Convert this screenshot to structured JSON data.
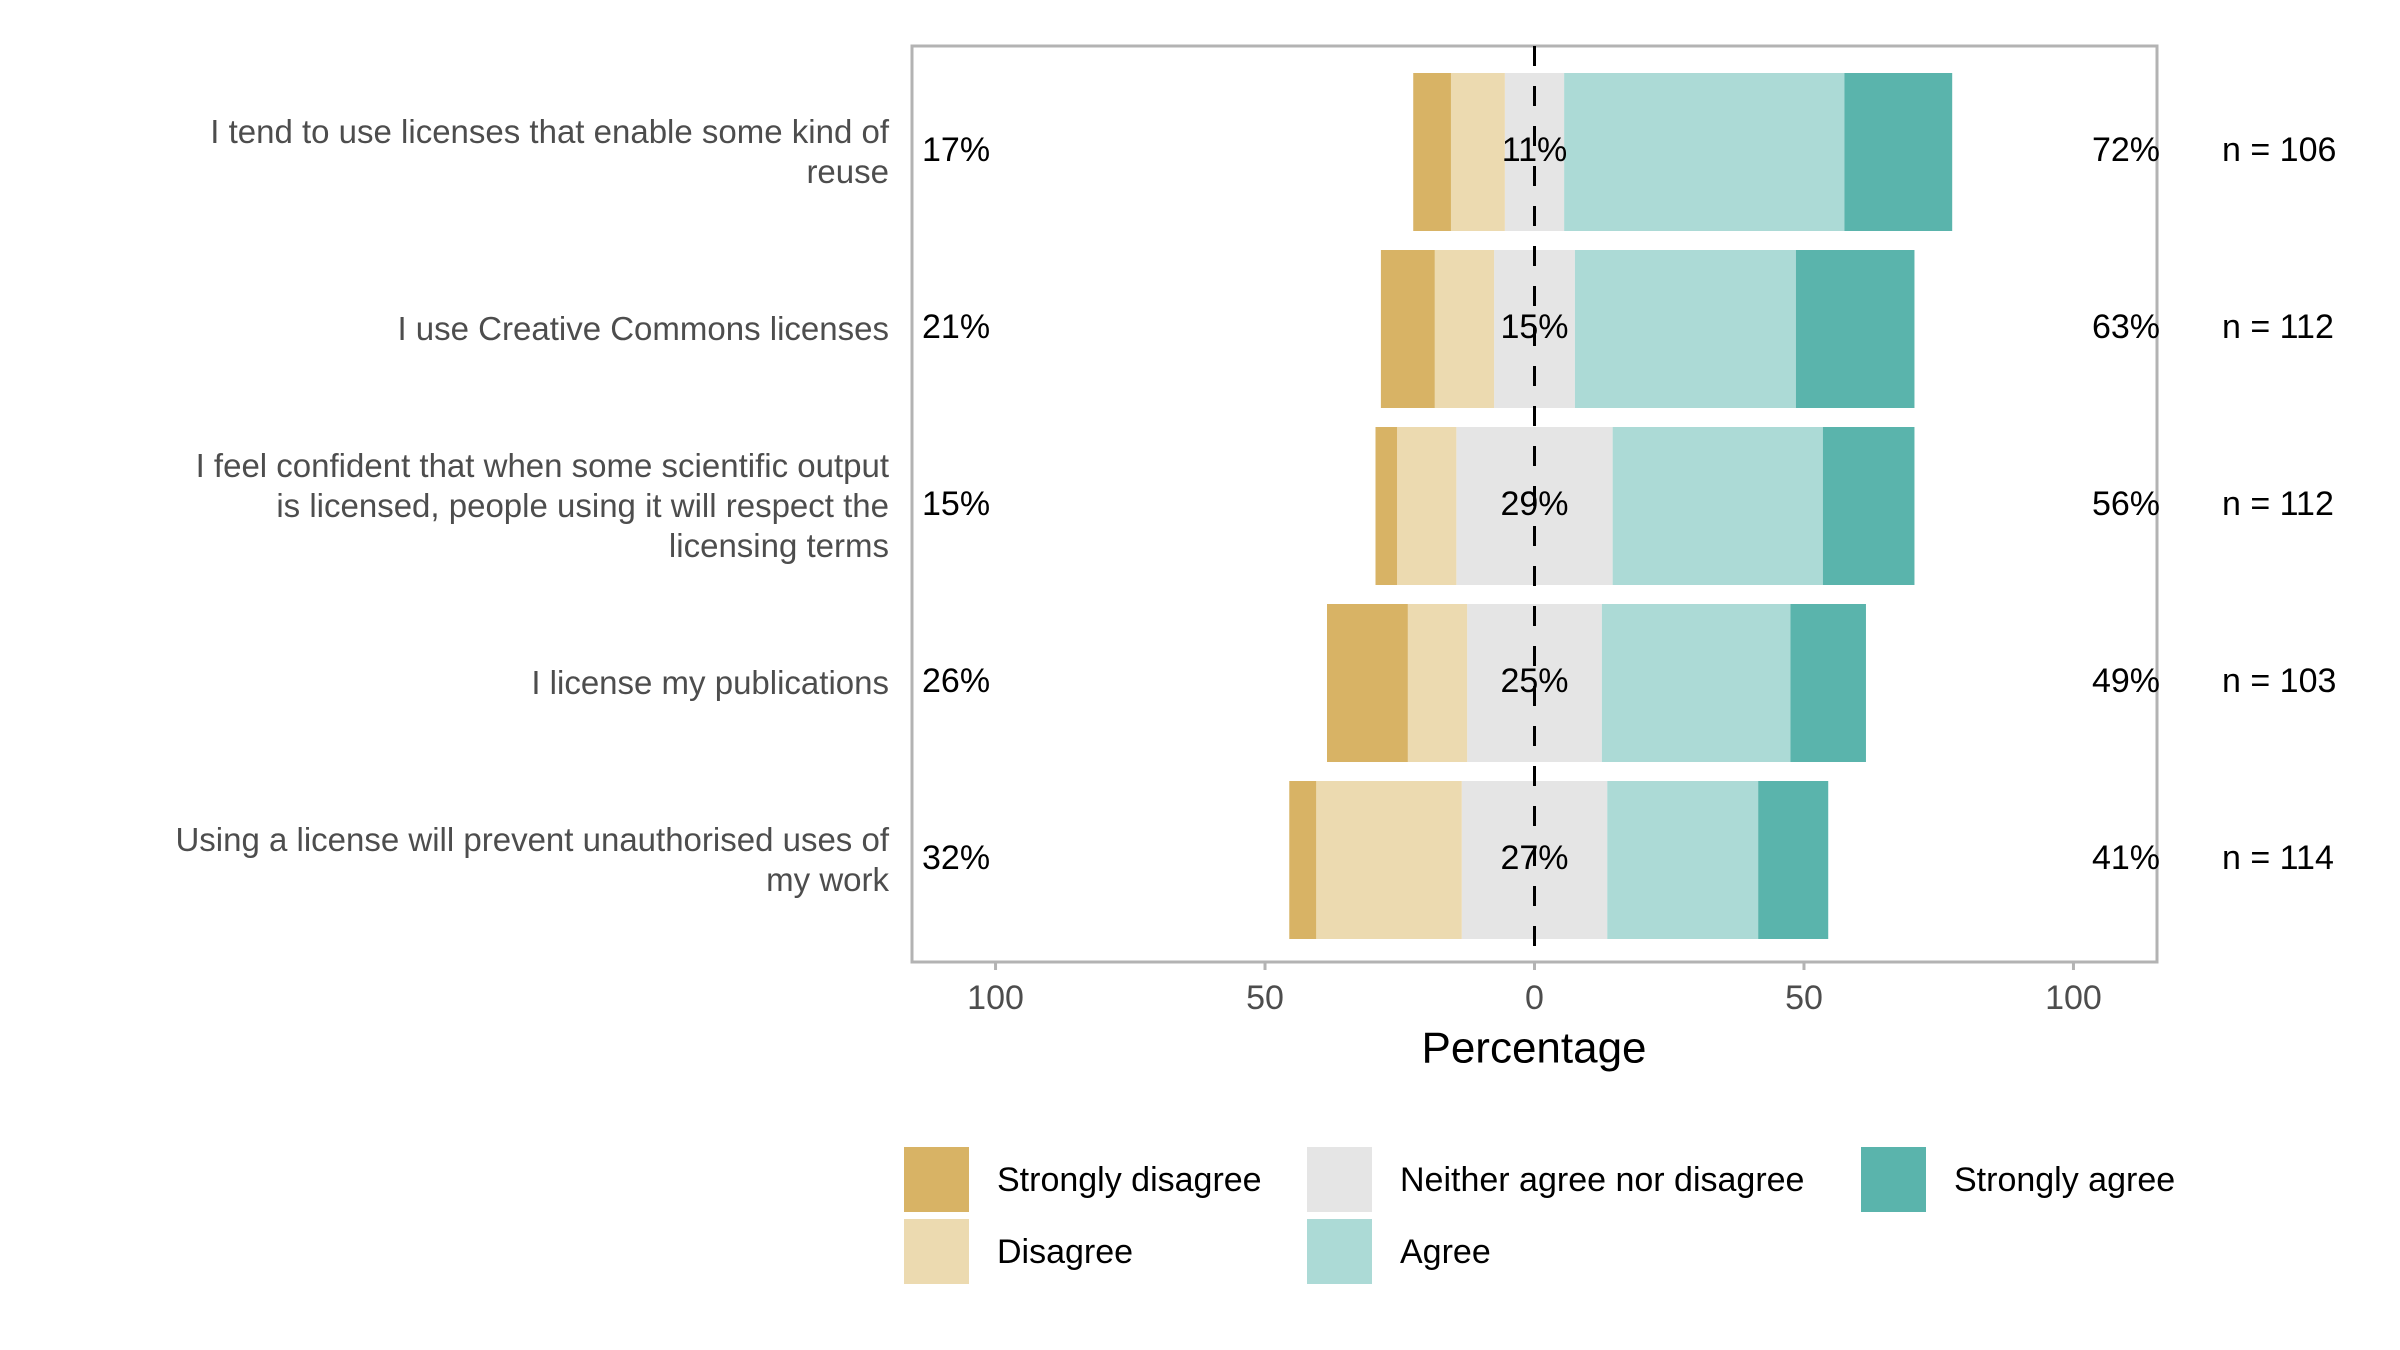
{
  "chart_data": {
    "type": "diverging_bar",
    "x_label": "Percentage",
    "categories": [
      "I tend to use licenses that enable some kind of\nreuse",
      "I use Creative Commons licenses",
      "I feel confident that when some scientific output\nis licensed, people using it will respect the\nlicensing terms",
      "I license my publications",
      "Using a license will prevent unauthorised uses of\nmy work"
    ],
    "series": [
      {
        "name": "Strongly disagree",
        "color": "#d8b365",
        "side": "negative",
        "values": [
          7,
          10,
          4,
          15,
          5
        ]
      },
      {
        "name": "Disagree",
        "color": "#ecdab0",
        "side": "negative",
        "values": [
          10,
          11,
          11,
          11,
          27
        ]
      },
      {
        "name": "Neither agree nor disagree",
        "color": "#e5e5e5",
        "side": "center",
        "values": [
          11,
          15,
          29,
          25,
          27
        ]
      },
      {
        "name": "Agree",
        "color": "#acdad6",
        "side": "positive",
        "values": [
          52,
          41,
          39,
          35,
          28
        ]
      },
      {
        "name": "Strongly agree",
        "color": "#5ab4ac",
        "side": "positive",
        "values": [
          20,
          22,
          17,
          14,
          13
        ]
      }
    ],
    "summary_left": {
      "values": [
        17,
        21,
        15,
        26,
        32
      ],
      "value_labels": [
        "17%",
        "21%",
        "15%",
        "26%",
        "32%"
      ]
    },
    "summary_center": {
      "values": [
        11,
        15,
        29,
        25,
        27
      ],
      "value_labels": [
        "11%",
        "15%",
        "29%",
        "25%",
        "27%"
      ]
    },
    "summary_right": {
      "values": [
        72,
        63,
        56,
        49,
        41
      ],
      "value_labels": [
        "72%",
        "63%",
        "56%",
        "49%",
        "41%"
      ]
    },
    "n": {
      "values": [
        106,
        112,
        112,
        103,
        114
      ],
      "value_labels": [
        "n = 106",
        "n = 112",
        "n = 112",
        "n = 103",
        "n = 114"
      ]
    },
    "xlim": [
      -115.5,
      115.5
    ],
    "xticks": [
      {
        "value": -100,
        "label": "100"
      },
      {
        "value": -50,
        "label": "50"
      },
      0,
      50,
      100
    ],
    "legend": "bottom"
  }
}
